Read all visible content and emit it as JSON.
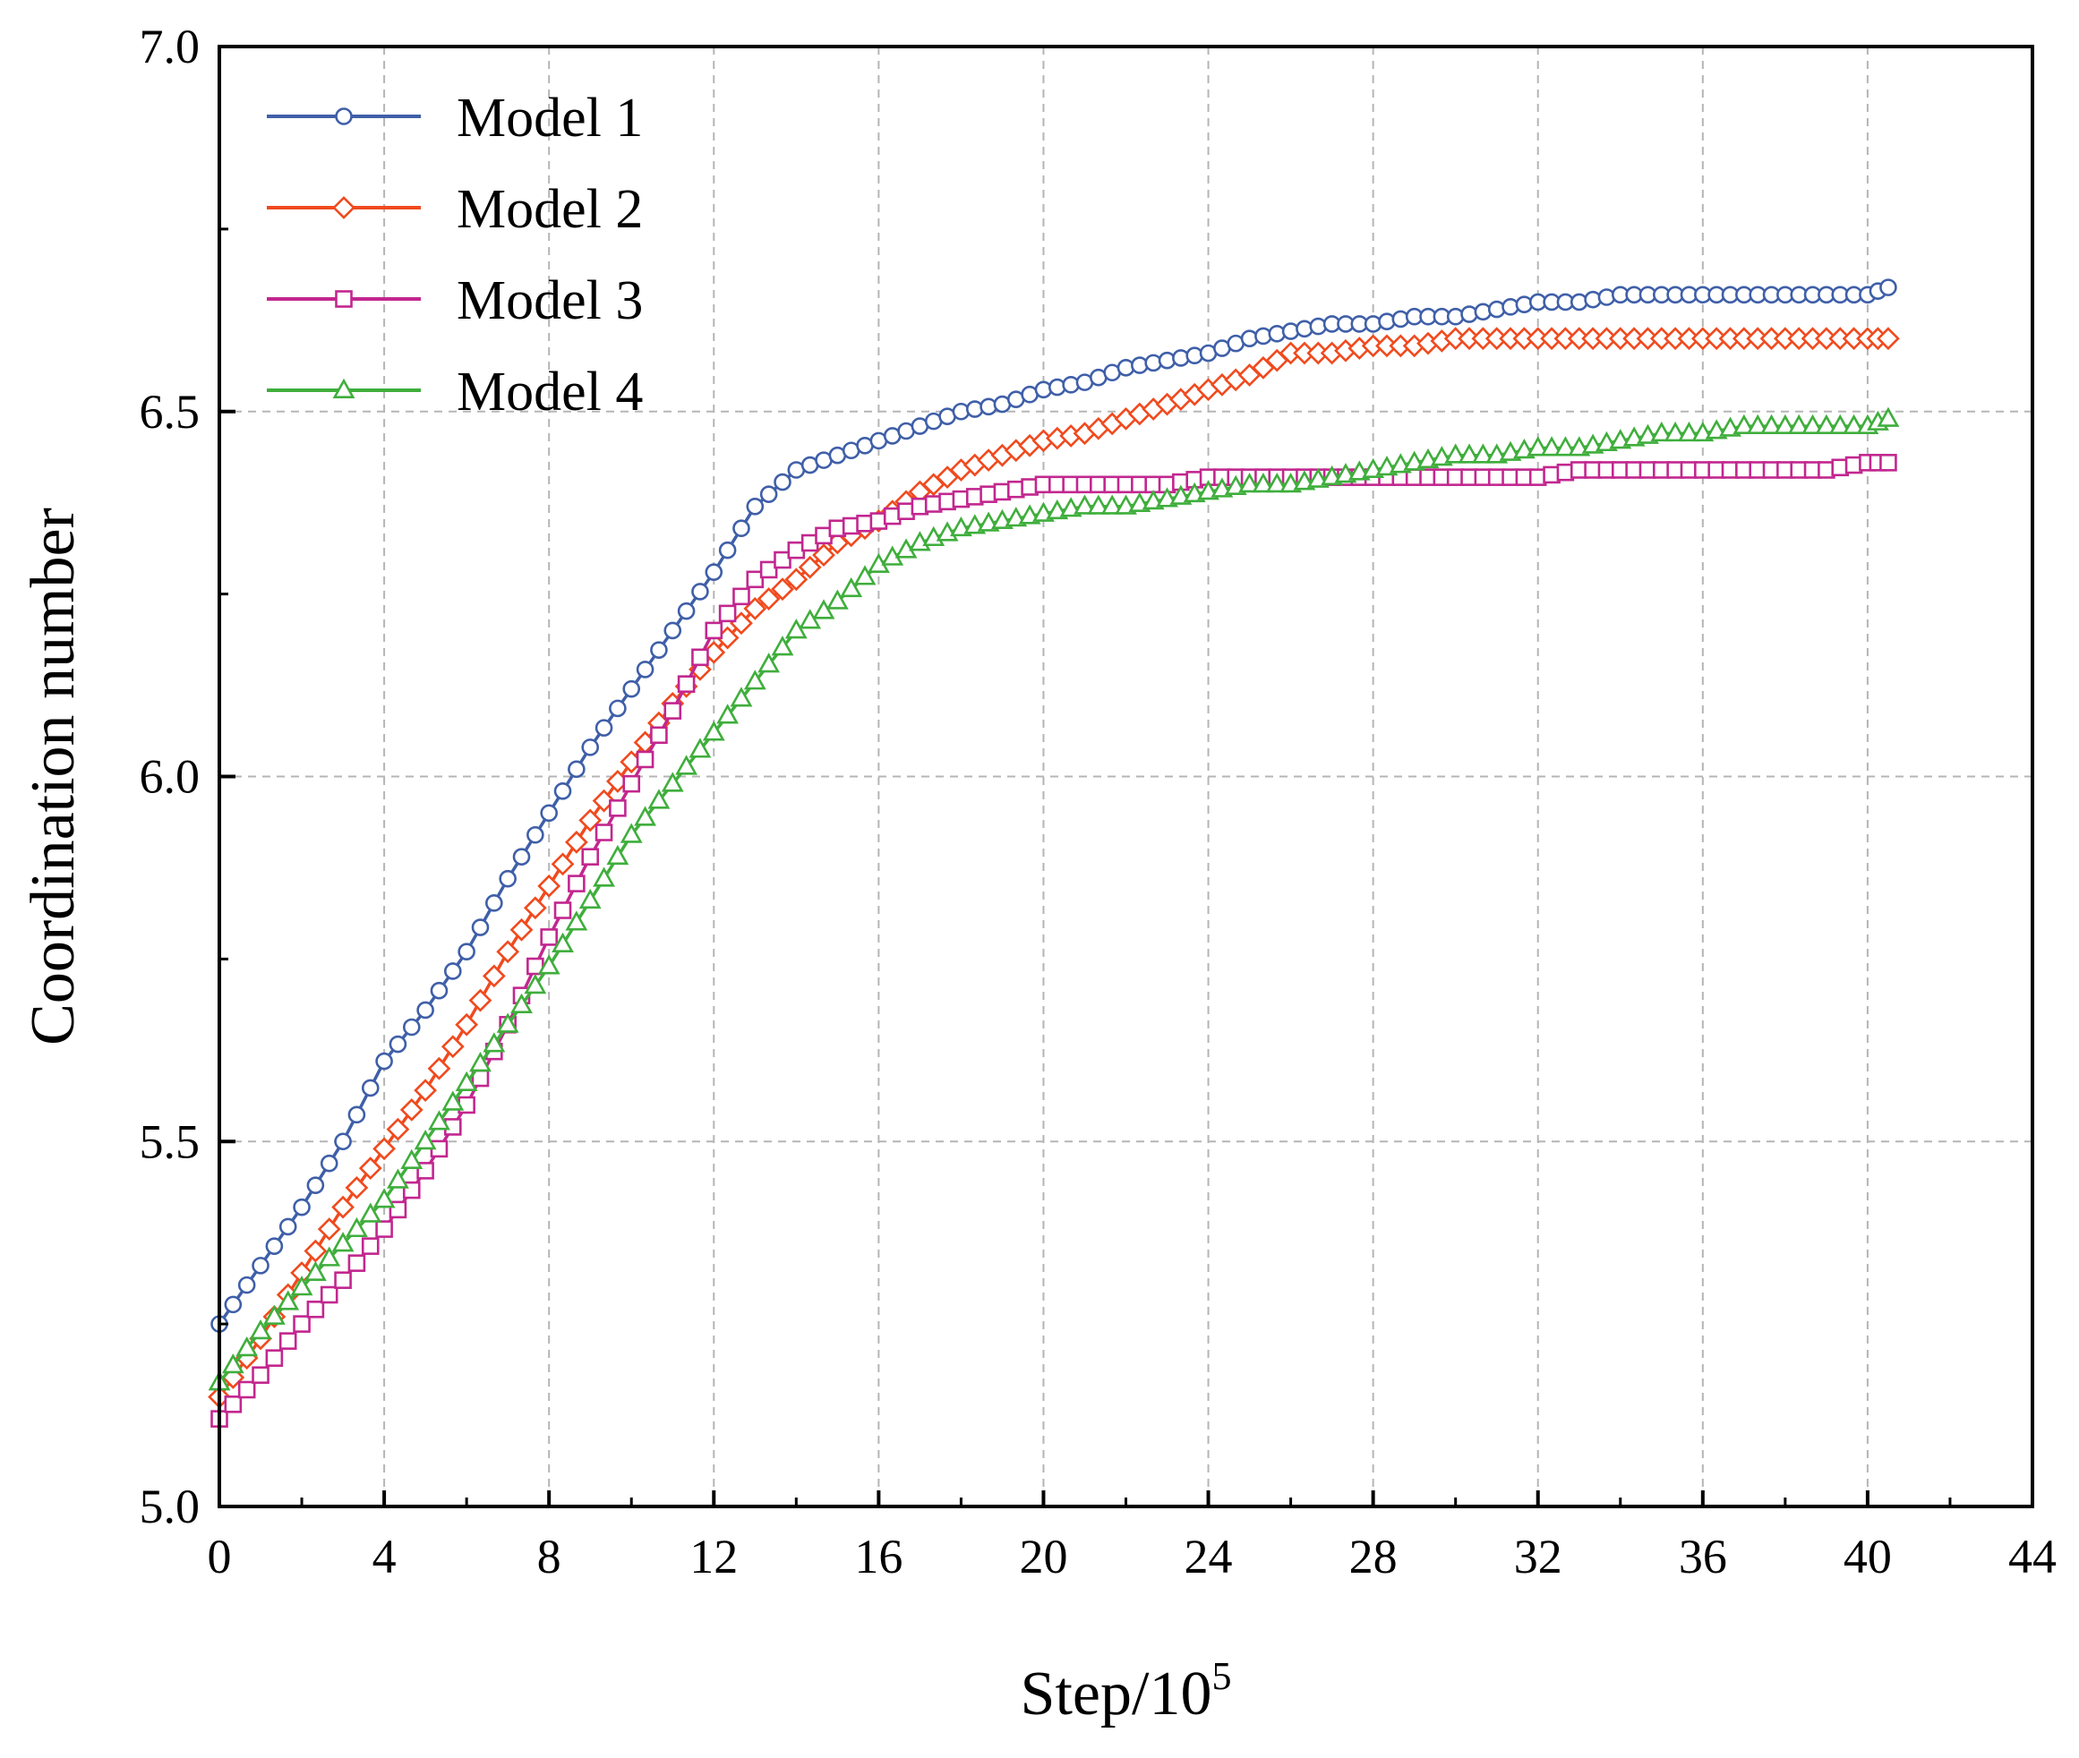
{
  "chart_data": {
    "type": "line",
    "title": "",
    "xlabel": "Step/10",
    "xlabel_superscript": "5",
    "ylabel": "Coordination number",
    "xlim": [
      0,
      44
    ],
    "ylim": [
      5.0,
      7.0
    ],
    "xticks": [
      "0",
      "4",
      "8",
      "12",
      "16",
      "20",
      "24",
      "28",
      "32",
      "36",
      "40",
      "44"
    ],
    "yticks": [
      "5.0",
      "5.5",
      "6.0",
      "6.5",
      "7.0"
    ],
    "grid": true,
    "legend_position": "top-left",
    "series": [
      {
        "name": "Model 1",
        "color": "#3F5FA8",
        "marker": "circle",
        "points": [
          [
            0,
            5.25
          ],
          [
            1,
            5.33
          ],
          [
            2,
            5.41
          ],
          [
            3,
            5.5
          ],
          [
            4,
            5.61
          ],
          [
            5,
            5.68
          ],
          [
            6,
            5.76
          ],
          [
            7,
            5.86
          ],
          [
            8,
            5.95
          ],
          [
            9,
            6.04
          ],
          [
            10,
            6.12
          ],
          [
            11,
            6.2
          ],
          [
            12,
            6.28
          ],
          [
            13,
            6.37
          ],
          [
            14,
            6.42
          ],
          [
            15,
            6.44
          ],
          [
            16,
            6.46
          ],
          [
            17,
            6.48
          ],
          [
            18,
            6.5
          ],
          [
            19,
            6.51
          ],
          [
            20,
            6.53
          ],
          [
            21,
            6.54
          ],
          [
            22,
            6.56
          ],
          [
            23,
            6.57
          ],
          [
            24,
            6.58
          ],
          [
            25,
            6.6
          ],
          [
            26,
            6.61
          ],
          [
            27,
            6.62
          ],
          [
            28,
            6.62
          ],
          [
            29,
            6.63
          ],
          [
            30,
            6.63
          ],
          [
            31,
            6.64
          ],
          [
            32,
            6.65
          ],
          [
            33,
            6.65
          ],
          [
            34,
            6.66
          ],
          [
            35,
            6.66
          ],
          [
            36,
            6.66
          ],
          [
            37,
            6.66
          ],
          [
            38,
            6.66
          ],
          [
            39,
            6.66
          ],
          [
            40,
            6.66
          ],
          [
            40.5,
            6.67
          ]
        ]
      },
      {
        "name": "Model 2",
        "color": "#F04A1E",
        "marker": "diamond",
        "points": [
          [
            0,
            5.15
          ],
          [
            1,
            5.23
          ],
          [
            2,
            5.32
          ],
          [
            3,
            5.41
          ],
          [
            4,
            5.49
          ],
          [
            5,
            5.57
          ],
          [
            6,
            5.66
          ],
          [
            7,
            5.76
          ],
          [
            8,
            5.85
          ],
          [
            9,
            5.94
          ],
          [
            10,
            6.02
          ],
          [
            11,
            6.1
          ],
          [
            12,
            6.17
          ],
          [
            13,
            6.23
          ],
          [
            14,
            6.27
          ],
          [
            15,
            6.32
          ],
          [
            16,
            6.35
          ],
          [
            17,
            6.39
          ],
          [
            18,
            6.42
          ],
          [
            19,
            6.44
          ],
          [
            20,
            6.46
          ],
          [
            21,
            6.47
          ],
          [
            22,
            6.49
          ],
          [
            23,
            6.51
          ],
          [
            24,
            6.53
          ],
          [
            25,
            6.55
          ],
          [
            26,
            6.58
          ],
          [
            27,
            6.58
          ],
          [
            28,
            6.59
          ],
          [
            29,
            6.59
          ],
          [
            30,
            6.6
          ],
          [
            31,
            6.6
          ],
          [
            32,
            6.6
          ],
          [
            33,
            6.6
          ],
          [
            34,
            6.6
          ],
          [
            35,
            6.6
          ],
          [
            36,
            6.6
          ],
          [
            37,
            6.6
          ],
          [
            38,
            6.6
          ],
          [
            39,
            6.6
          ],
          [
            40,
            6.6
          ],
          [
            40.5,
            6.6
          ]
        ]
      },
      {
        "name": "Model 3",
        "color": "#C2278F",
        "marker": "square",
        "points": [
          [
            0,
            5.12
          ],
          [
            1,
            5.18
          ],
          [
            2,
            5.25
          ],
          [
            3,
            5.31
          ],
          [
            4,
            5.38
          ],
          [
            5,
            5.46
          ],
          [
            6,
            5.55
          ],
          [
            7,
            5.66
          ],
          [
            8,
            5.78
          ],
          [
            9,
            5.89
          ],
          [
            10,
            5.99
          ],
          [
            11,
            6.09
          ],
          [
            12,
            6.2
          ],
          [
            13,
            6.27
          ],
          [
            14,
            6.31
          ],
          [
            15,
            6.34
          ],
          [
            16,
            6.35
          ],
          [
            17,
            6.37
          ],
          [
            18,
            6.38
          ],
          [
            19,
            6.39
          ],
          [
            20,
            6.4
          ],
          [
            21,
            6.4
          ],
          [
            22,
            6.4
          ],
          [
            23,
            6.4
          ],
          [
            24,
            6.41
          ],
          [
            25,
            6.41
          ],
          [
            26,
            6.41
          ],
          [
            27,
            6.41
          ],
          [
            28,
            6.41
          ],
          [
            29,
            6.41
          ],
          [
            30,
            6.41
          ],
          [
            31,
            6.41
          ],
          [
            32,
            6.41
          ],
          [
            33,
            6.42
          ],
          [
            34,
            6.42
          ],
          [
            35,
            6.42
          ],
          [
            36,
            6.42
          ],
          [
            37,
            6.42
          ],
          [
            38,
            6.42
          ],
          [
            39,
            6.42
          ],
          [
            40,
            6.43
          ],
          [
            40.5,
            6.43
          ]
        ]
      },
      {
        "name": "Model 4",
        "color": "#3FAE3C",
        "marker": "triangle",
        "points": [
          [
            0,
            5.17
          ],
          [
            1,
            5.24
          ],
          [
            2,
            5.3
          ],
          [
            3,
            5.36
          ],
          [
            4,
            5.42
          ],
          [
            5,
            5.5
          ],
          [
            6,
            5.58
          ],
          [
            7,
            5.66
          ],
          [
            8,
            5.74
          ],
          [
            9,
            5.83
          ],
          [
            10,
            5.92
          ],
          [
            11,
            5.99
          ],
          [
            12,
            6.06
          ],
          [
            13,
            6.13
          ],
          [
            14,
            6.2
          ],
          [
            15,
            6.24
          ],
          [
            16,
            6.29
          ],
          [
            17,
            6.32
          ],
          [
            18,
            6.34
          ],
          [
            19,
            6.35
          ],
          [
            20,
            6.36
          ],
          [
            21,
            6.37
          ],
          [
            22,
            6.37
          ],
          [
            23,
            6.38
          ],
          [
            24,
            6.39
          ],
          [
            25,
            6.4
          ],
          [
            26,
            6.4
          ],
          [
            27,
            6.41
          ],
          [
            28,
            6.42
          ],
          [
            29,
            6.43
          ],
          [
            30,
            6.44
          ],
          [
            31,
            6.44
          ],
          [
            32,
            6.45
          ],
          [
            33,
            6.45
          ],
          [
            34,
            6.46
          ],
          [
            35,
            6.47
          ],
          [
            36,
            6.47
          ],
          [
            37,
            6.48
          ],
          [
            38,
            6.48
          ],
          [
            39,
            6.48
          ],
          [
            40,
            6.48
          ],
          [
            40.5,
            6.49
          ]
        ]
      }
    ]
  }
}
